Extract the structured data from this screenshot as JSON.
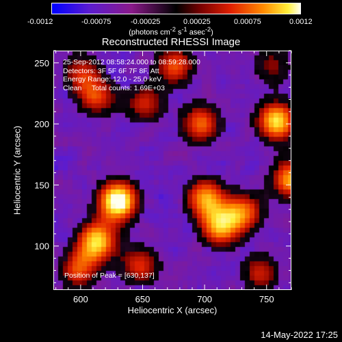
{
  "colorbar": {
    "ticks": [
      "-0.0012",
      "-0.00075",
      "-0.00025",
      "0.00025",
      "0.00075",
      "0.0012"
    ],
    "unit_label_html": "(photons cm<sup>-2</sup> s<sup>-1</sup> asec<sup>-2</sup>)",
    "range": [
      -0.0012,
      0.0012
    ],
    "stops": [
      "#0000ff",
      "#5b1cd0",
      "#8a1a8a",
      "#000000",
      "#7a0000",
      "#e02000",
      "#ff8a00",
      "#ffef3a",
      "#fffff0"
    ]
  },
  "chart_data": {
    "type": "heatmap",
    "title": "Reconstructed RHESSI Image",
    "xlabel": "Heliocentric X (arcsec)",
    "ylabel": "Heliocentric Y (arcsec)",
    "xlim": [
      578,
      770
    ],
    "ylim": [
      64,
      260
    ],
    "x_ticks": [
      "600",
      "650",
      "700",
      "750"
    ],
    "y_ticks": [
      "100",
      "150",
      "200",
      "250"
    ],
    "annotations": [
      "25-Sep-2012 08:58:24.000 to 08:59:28.000",
      "Detectors: 3F 5F 6F 7F 8F, Att",
      "Energy Range: 12.0 - 25.0 keV",
      "Clean     Total counts: 1.69E+03"
    ],
    "peak_label": "Position of Peak = [630,137]",
    "peak": {
      "x": 630,
      "y": 137
    },
    "hot_regions": [
      {
        "x": 630,
        "y": 137,
        "level": 1.0
      },
      {
        "x": 613,
        "y": 222,
        "level": 0.55
      },
      {
        "x": 652,
        "y": 216,
        "level": 0.5
      },
      {
        "x": 758,
        "y": 202,
        "level": 0.85
      },
      {
        "x": 770,
        "y": 155,
        "level": 0.75
      },
      {
        "x": 697,
        "y": 200,
        "level": 0.65
      },
      {
        "x": 700,
        "y": 140,
        "level": 0.7
      },
      {
        "x": 712,
        "y": 115,
        "level": 0.7
      },
      {
        "x": 613,
        "y": 104,
        "level": 0.8
      },
      {
        "x": 732,
        "y": 128,
        "level": 0.6
      },
      {
        "x": 598,
        "y": 80,
        "level": 0.55
      },
      {
        "x": 676,
        "y": 248,
        "level": 0.6
      },
      {
        "x": 600,
        "y": 243,
        "level": 0.45
      },
      {
        "x": 745,
        "y": 78,
        "level": 0.5
      },
      {
        "x": 648,
        "y": 84,
        "level": 0.55
      },
      {
        "x": 755,
        "y": 248,
        "level": 0.4
      }
    ]
  },
  "timestamp": "14-May-2022 17:25"
}
